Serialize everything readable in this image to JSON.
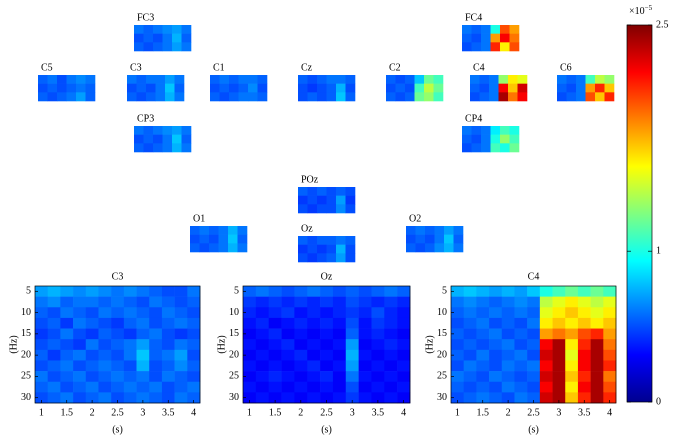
{
  "chart_data": {
    "type": "heatmap",
    "colorbar": {
      "scale_label": "×10",
      "scale_exponent": "−5",
      "lim": [
        0,
        2.5
      ],
      "ticks": [
        0,
        1,
        2.5
      ]
    },
    "topomaps": [
      {
        "label": "FC3",
        "values": [
          [
            0.6,
            0.55,
            0.6,
            0.65,
            0.7,
            0.6
          ],
          [
            0.5,
            0.55,
            0.5,
            0.6,
            0.75,
            0.55
          ],
          [
            0.55,
            0.5,
            0.55,
            0.6,
            0.7,
            0.6
          ]
        ]
      },
      {
        "label": "FC4",
        "values": [
          [
            0.6,
            0.55,
            0.6,
            1.0,
            2.0,
            1.8
          ],
          [
            0.55,
            0.5,
            0.6,
            1.8,
            2.2,
            1.9
          ],
          [
            0.5,
            0.55,
            0.6,
            2.1,
            1.6,
            2.0
          ]
        ]
      },
      {
        "label": "C5",
        "values": [
          [
            0.55,
            0.6,
            0.5,
            0.6,
            0.65,
            0.6
          ],
          [
            0.5,
            0.55,
            0.5,
            0.55,
            0.6,
            0.55
          ],
          [
            0.55,
            0.5,
            0.55,
            0.6,
            0.7,
            0.55
          ]
        ]
      },
      {
        "label": "C3",
        "values": [
          [
            0.6,
            0.55,
            0.6,
            0.6,
            0.7,
            0.6
          ],
          [
            0.5,
            0.55,
            0.5,
            0.6,
            0.8,
            0.55
          ],
          [
            0.55,
            0.5,
            0.55,
            0.6,
            0.75,
            0.6
          ]
        ]
      },
      {
        "label": "C1",
        "values": [
          [
            0.55,
            0.6,
            0.55,
            0.6,
            0.6,
            0.55
          ],
          [
            0.5,
            0.55,
            0.5,
            0.55,
            0.65,
            0.5
          ],
          [
            0.55,
            0.5,
            0.55,
            0.6,
            0.6,
            0.55
          ]
        ]
      },
      {
        "label": "Cz",
        "values": [
          [
            0.55,
            0.5,
            0.55,
            0.6,
            0.6,
            0.55
          ],
          [
            0.5,
            0.45,
            0.5,
            0.55,
            0.75,
            0.5
          ],
          [
            0.5,
            0.55,
            0.5,
            0.55,
            0.8,
            0.55
          ]
        ]
      },
      {
        "label": "C2",
        "values": [
          [
            0.55,
            0.5,
            0.55,
            0.8,
            1.2,
            1.1
          ],
          [
            0.5,
            0.55,
            0.5,
            1.1,
            1.4,
            1.2
          ],
          [
            0.55,
            0.5,
            0.55,
            1.2,
            1.3,
            1.1
          ]
        ]
      },
      {
        "label": "C4",
        "values": [
          [
            0.6,
            0.55,
            0.6,
            1.3,
            1.6,
            1.5
          ],
          [
            0.55,
            0.5,
            0.6,
            2.2,
            1.7,
            2.3
          ],
          [
            0.5,
            0.55,
            0.6,
            2.4,
            1.9,
            2.2
          ]
        ]
      },
      {
        "label": "C6",
        "values": [
          [
            0.6,
            0.55,
            0.6,
            1.1,
            1.4,
            1.3
          ],
          [
            0.55,
            0.5,
            0.6,
            1.8,
            2.1,
            1.7
          ],
          [
            0.5,
            0.55,
            0.6,
            2.0,
            1.7,
            2.1
          ]
        ]
      },
      {
        "label": "CP3",
        "values": [
          [
            0.6,
            0.55,
            0.6,
            0.65,
            0.7,
            0.6
          ],
          [
            0.5,
            0.55,
            0.5,
            0.6,
            0.8,
            0.55
          ],
          [
            0.55,
            0.5,
            0.55,
            0.6,
            0.75,
            0.6
          ]
        ]
      },
      {
        "label": "CP4",
        "values": [
          [
            0.6,
            0.55,
            0.6,
            0.9,
            1.1,
            1.0
          ],
          [
            0.55,
            0.5,
            0.6,
            1.0,
            1.3,
            1.1
          ],
          [
            0.5,
            0.55,
            0.6,
            1.1,
            1.0,
            1.2
          ]
        ]
      },
      {
        "label": "POz",
        "values": [
          [
            0.55,
            0.5,
            0.55,
            0.5,
            0.55,
            0.5
          ],
          [
            0.45,
            0.5,
            0.45,
            0.5,
            0.7,
            0.45
          ],
          [
            0.5,
            0.45,
            0.5,
            0.5,
            0.65,
            0.5
          ]
        ]
      },
      {
        "label": "O1",
        "values": [
          [
            0.55,
            0.6,
            0.55,
            0.6,
            0.75,
            0.6
          ],
          [
            0.5,
            0.55,
            0.5,
            0.6,
            0.8,
            0.55
          ],
          [
            0.55,
            0.5,
            0.55,
            0.6,
            0.75,
            0.6
          ]
        ]
      },
      {
        "label": "Oz",
        "values": [
          [
            0.55,
            0.5,
            0.55,
            0.55,
            0.6,
            0.55
          ],
          [
            0.45,
            0.5,
            0.45,
            0.5,
            0.75,
            0.5
          ],
          [
            0.5,
            0.45,
            0.5,
            0.55,
            0.7,
            0.5
          ]
        ]
      },
      {
        "label": "O2",
        "values": [
          [
            0.55,
            0.6,
            0.55,
            0.6,
            0.7,
            0.6
          ],
          [
            0.5,
            0.55,
            0.5,
            0.6,
            0.8,
            0.55
          ],
          [
            0.55,
            0.5,
            0.55,
            0.65,
            0.75,
            0.6
          ]
        ]
      }
    ],
    "panels": [
      {
        "title": "C3",
        "xlabel": "(s)",
        "ylabel": "(Hz)",
        "xlim": [
          0.875,
          4.125
        ],
        "ylim": [
          3.75,
          31.25
        ],
        "xticks": [
          1,
          1.5,
          2,
          2.5,
          3,
          3.5,
          4
        ],
        "yticks": [
          5,
          10,
          15,
          20,
          25,
          30
        ],
        "x": [
          1,
          1.25,
          1.5,
          1.75,
          2,
          2.25,
          2.5,
          2.75,
          3,
          3.25,
          3.5,
          3.75,
          4
        ],
        "y": [
          5,
          7.5,
          10,
          12.5,
          15,
          17.5,
          20,
          22.5,
          25,
          27.5,
          30
        ],
        "values": [
          [
            0.7,
            0.75,
            0.7,
            0.65,
            0.7,
            0.65,
            0.6,
            0.65,
            0.6,
            0.55,
            0.5,
            0.5,
            0.6
          ],
          [
            0.6,
            0.65,
            0.55,
            0.6,
            0.6,
            0.55,
            0.6,
            0.55,
            0.5,
            0.6,
            0.55,
            0.5,
            0.55
          ],
          [
            0.55,
            0.5,
            0.6,
            0.55,
            0.5,
            0.6,
            0.55,
            0.6,
            0.55,
            0.5,
            0.6,
            0.55,
            0.5
          ],
          [
            0.5,
            0.55,
            0.45,
            0.6,
            0.55,
            0.5,
            0.45,
            0.55,
            0.6,
            0.5,
            0.55,
            0.6,
            0.55
          ],
          [
            0.45,
            0.5,
            0.6,
            0.5,
            0.45,
            0.55,
            0.5,
            0.45,
            0.55,
            0.6,
            0.5,
            0.45,
            0.5
          ],
          [
            0.5,
            0.55,
            0.5,
            0.45,
            0.6,
            0.5,
            0.55,
            0.6,
            0.7,
            0.55,
            0.5,
            0.6,
            0.55
          ],
          [
            0.55,
            0.45,
            0.55,
            0.6,
            0.5,
            0.55,
            0.5,
            0.6,
            0.8,
            0.55,
            0.6,
            0.7,
            0.5
          ],
          [
            0.5,
            0.55,
            0.6,
            0.5,
            0.55,
            0.6,
            0.55,
            0.5,
            0.75,
            0.5,
            0.55,
            0.65,
            0.55
          ],
          [
            0.6,
            0.5,
            0.55,
            0.6,
            0.5,
            0.55,
            0.6,
            0.55,
            0.6,
            0.5,
            0.6,
            0.55,
            0.5
          ],
          [
            0.55,
            0.6,
            0.5,
            0.55,
            0.6,
            0.5,
            0.55,
            0.6,
            0.55,
            0.6,
            0.5,
            0.55,
            0.6
          ],
          [
            0.5,
            0.55,
            0.6,
            0.5,
            0.55,
            0.6,
            0.5,
            0.55,
            0.6,
            0.55,
            0.5,
            0.6,
            0.55
          ]
        ]
      },
      {
        "title": "Oz",
        "xlabel": "(s)",
        "ylabel": "(Hz)",
        "xlim": [
          0.875,
          4.125
        ],
        "ylim": [
          3.75,
          31.25
        ],
        "xticks": [
          1,
          1.5,
          2,
          2.5,
          3,
          3.5,
          4
        ],
        "yticks": [
          5,
          10,
          15,
          20,
          25,
          30
        ],
        "x": [
          1,
          1.25,
          1.5,
          1.75,
          2,
          2.25,
          2.5,
          2.75,
          3,
          3.25,
          3.5,
          3.75,
          4
        ],
        "y": [
          5,
          7.5,
          10,
          12.5,
          15,
          17.5,
          20,
          22.5,
          25,
          27.5,
          30
        ],
        "values": [
          [
            0.55,
            0.6,
            0.55,
            0.5,
            0.55,
            0.6,
            0.55,
            0.5,
            0.55,
            0.5,
            0.55,
            0.6,
            0.55
          ],
          [
            0.45,
            0.4,
            0.45,
            0.4,
            0.45,
            0.4,
            0.45,
            0.4,
            0.5,
            0.45,
            0.4,
            0.45,
            0.4
          ],
          [
            0.4,
            0.35,
            0.4,
            0.45,
            0.35,
            0.4,
            0.35,
            0.4,
            0.45,
            0.4,
            0.5,
            0.4,
            0.35
          ],
          [
            0.35,
            0.4,
            0.3,
            0.35,
            0.4,
            0.35,
            0.4,
            0.35,
            0.5,
            0.35,
            0.45,
            0.4,
            0.35
          ],
          [
            0.3,
            0.35,
            0.4,
            0.3,
            0.35,
            0.3,
            0.35,
            0.3,
            0.55,
            0.35,
            0.4,
            0.35,
            0.3
          ],
          [
            0.35,
            0.3,
            0.35,
            0.4,
            0.3,
            0.35,
            0.3,
            0.35,
            0.7,
            0.3,
            0.35,
            0.4,
            0.35
          ],
          [
            0.3,
            0.35,
            0.3,
            0.35,
            0.4,
            0.3,
            0.35,
            0.3,
            0.75,
            0.35,
            0.3,
            0.35,
            0.3
          ],
          [
            0.35,
            0.3,
            0.35,
            0.3,
            0.35,
            0.4,
            0.3,
            0.35,
            0.7,
            0.3,
            0.35,
            0.3,
            0.35
          ],
          [
            0.3,
            0.35,
            0.4,
            0.35,
            0.3,
            0.35,
            0.4,
            0.3,
            0.6,
            0.35,
            0.3,
            0.35,
            0.3
          ],
          [
            0.35,
            0.3,
            0.35,
            0.3,
            0.35,
            0.3,
            0.35,
            0.3,
            0.5,
            0.3,
            0.35,
            0.3,
            0.35
          ],
          [
            0.3,
            0.35,
            0.3,
            0.35,
            0.3,
            0.35,
            0.3,
            0.35,
            0.45,
            0.35,
            0.3,
            0.35,
            0.3
          ]
        ]
      },
      {
        "title": "C4",
        "xlabel": "(s)",
        "ylabel": "(Hz)",
        "xlim": [
          0.875,
          4.125
        ],
        "ylim": [
          3.75,
          31.25
        ],
        "xticks": [
          1,
          1.5,
          2,
          2.5,
          3,
          3.5,
          4
        ],
        "yticks": [
          5,
          10,
          15,
          20,
          25,
          30
        ],
        "x": [
          1,
          1.25,
          1.5,
          1.75,
          2,
          2.25,
          2.5,
          2.75,
          3,
          3.25,
          3.5,
          3.75,
          4
        ],
        "y": [
          5,
          7.5,
          10,
          12.5,
          15,
          17.5,
          20,
          22.5,
          25,
          27.5,
          30
        ],
        "values": [
          [
            0.75,
            0.8,
            0.75,
            0.7,
            0.75,
            0.7,
            0.8,
            1.0,
            1.1,
            1.2,
            1.1,
            1.2,
            1.1
          ],
          [
            0.6,
            0.65,
            0.6,
            0.55,
            0.6,
            0.65,
            0.6,
            1.4,
            1.5,
            1.6,
            1.5,
            1.4,
            1.5
          ],
          [
            0.55,
            0.6,
            0.55,
            0.6,
            0.55,
            0.6,
            0.55,
            1.5,
            1.6,
            1.7,
            1.6,
            1.5,
            1.6
          ],
          [
            0.5,
            0.55,
            0.6,
            0.5,
            0.55,
            0.5,
            0.6,
            1.6,
            1.7,
            1.6,
            1.7,
            1.6,
            1.7
          ],
          [
            0.55,
            0.5,
            0.55,
            0.6,
            0.5,
            0.55,
            0.5,
            1.8,
            1.9,
            1.8,
            2.0,
            2.1,
            1.8
          ],
          [
            0.5,
            0.55,
            0.5,
            0.55,
            0.6,
            0.5,
            0.55,
            2.2,
            2.4,
            1.6,
            2.1,
            2.4,
            1.9
          ],
          [
            0.55,
            0.5,
            0.6,
            0.5,
            0.55,
            0.6,
            0.5,
            2.3,
            2.4,
            1.5,
            2.2,
            2.4,
            2.0
          ],
          [
            0.5,
            0.6,
            0.55,
            0.5,
            0.6,
            0.55,
            0.6,
            2.2,
            2.4,
            1.6,
            2.2,
            2.4,
            2.1
          ],
          [
            0.6,
            0.55,
            0.5,
            0.6,
            0.55,
            0.5,
            0.55,
            2.3,
            2.4,
            1.7,
            2.1,
            2.4,
            1.9
          ],
          [
            0.55,
            0.5,
            0.55,
            0.5,
            0.6,
            0.55,
            0.5,
            2.2,
            2.4,
            1.6,
            2.2,
            2.4,
            2.0
          ],
          [
            0.5,
            0.55,
            0.6,
            0.55,
            0.5,
            0.6,
            0.55,
            2.3,
            2.4,
            1.7,
            2.1,
            2.4,
            2.1
          ]
        ]
      }
    ]
  }
}
